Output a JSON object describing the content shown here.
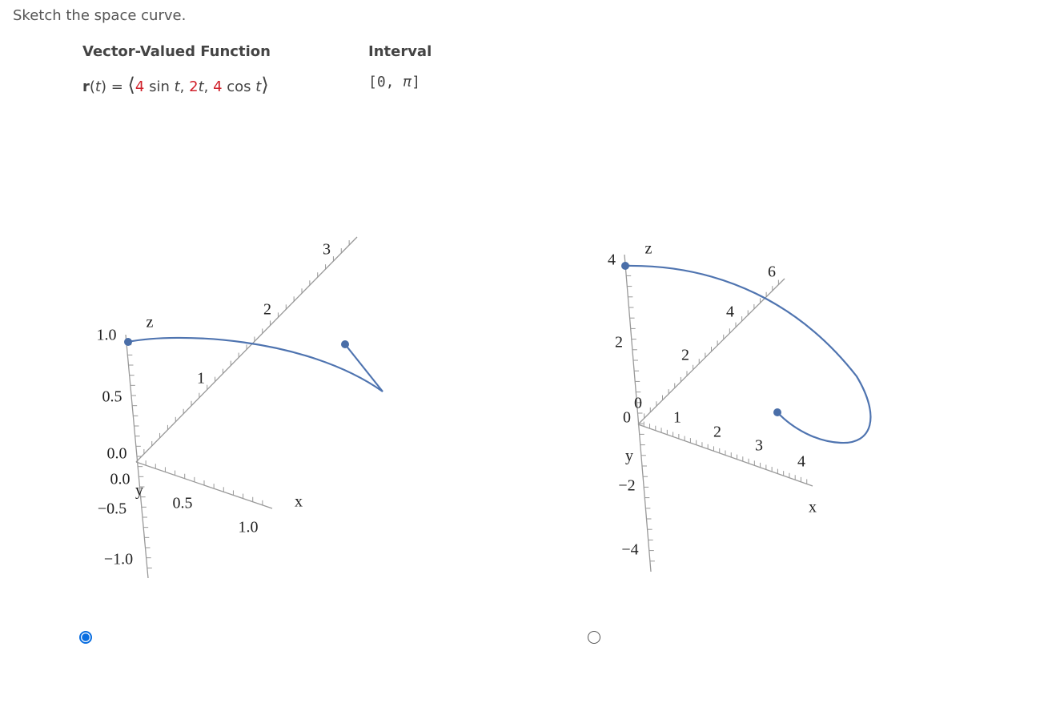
{
  "prompt": "Sketch the space curve.",
  "table": {
    "headers": [
      "Vector-Valued Function",
      "Interval"
    ],
    "function": [
      "r",
      "(",
      "t",
      ") = ",
      "⟨",
      "4",
      " sin ",
      "t",
      ", ",
      "2",
      "t",
      ", ",
      "4",
      " cos ",
      "t",
      "⟩"
    ],
    "interval": [
      "[0, ",
      "π",
      "]"
    ]
  },
  "options": [
    {
      "selected": true,
      "labels": [
        "z",
        "y",
        "x",
        "1.0",
        "0.5",
        "0.0",
        "0.0",
        "−0.5",
        "−1.0",
        "1",
        "2",
        "3",
        "0.5",
        "1.0"
      ]
    },
    {
      "selected": false,
      "labels": [
        "z",
        "y",
        "x",
        "4",
        "2",
        "0",
        "0",
        "−2",
        "−4",
        "2",
        "4",
        "6",
        "1",
        "2",
        "3",
        "4"
      ]
    }
  ]
}
